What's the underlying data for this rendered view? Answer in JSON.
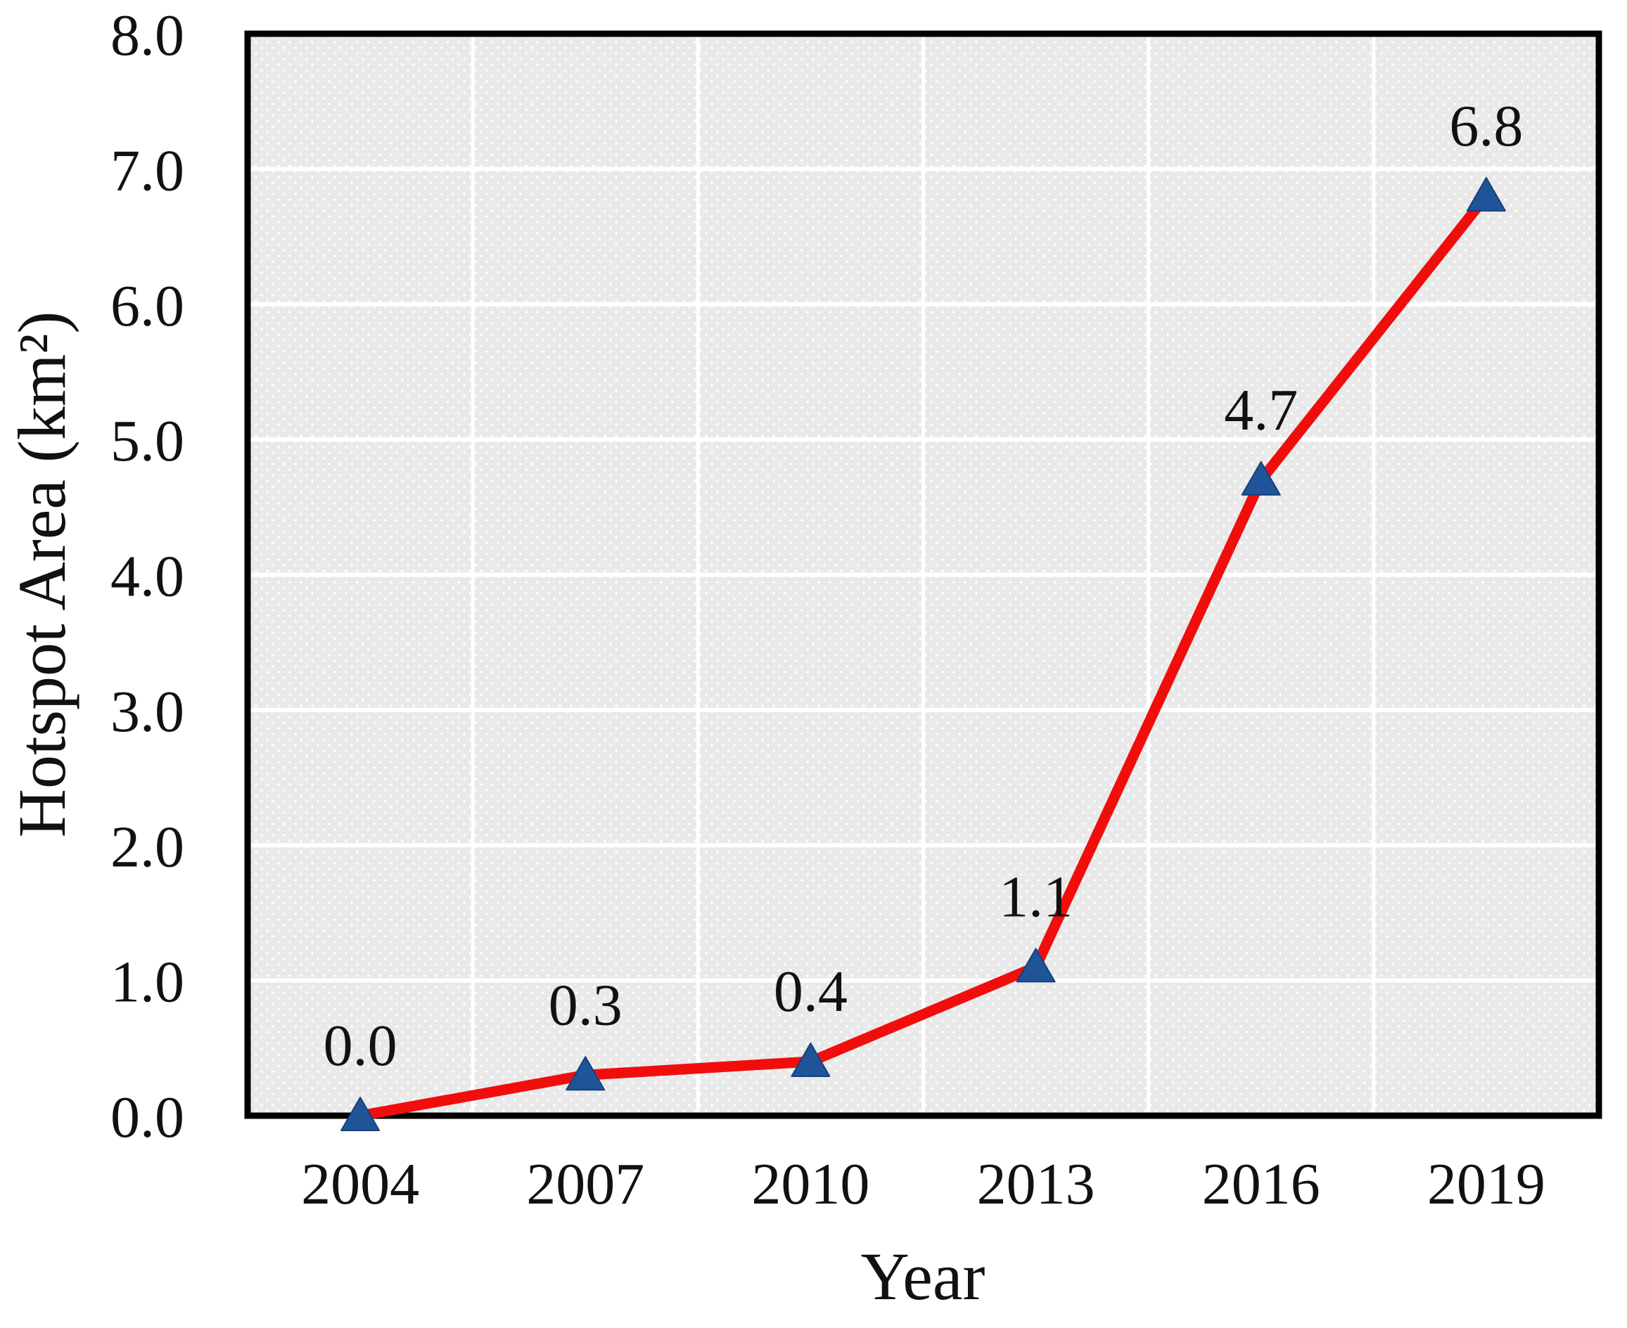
{
  "chart_data": {
    "type": "line",
    "categories": [
      "2004",
      "2007",
      "2010",
      "2013",
      "2016",
      "2019"
    ],
    "series": [
      {
        "name": "Hotspot Area",
        "values": [
          0.0,
          0.3,
          0.4,
          1.1,
          4.7,
          6.8
        ]
      }
    ],
    "data_labels": [
      "0.0",
      "0.3",
      "0.4",
      "1.1",
      "4.7",
      "6.8"
    ],
    "xlabel": "Year",
    "ylabel": "Hotspot Area (km²)",
    "ylim": [
      0.0,
      8.0
    ],
    "y_tick_step": 1.0,
    "y_tick_labels": [
      "0.0",
      "1.0",
      "2.0",
      "3.0",
      "4.0",
      "5.0",
      "6.0",
      "7.0",
      "8.0"
    ],
    "grid": true,
    "legend_position": "none",
    "marker_shape": "triangle-up",
    "colors": {
      "line": "#f20d0d",
      "marker_fill": "#1f5499",
      "marker_edge": "#16407c",
      "plot_background": "#e9e9e9",
      "plot_background_dots": "#ffffff",
      "gridline": "#ffffff",
      "plot_border": "#000000",
      "text": "#111111"
    }
  }
}
